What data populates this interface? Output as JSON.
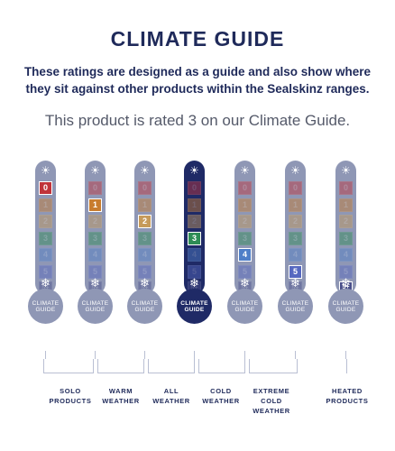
{
  "title": "CLIMATE GUIDE",
  "subtitle": "These ratings are designed as a guide and also show where they sit against other products within the Sealskinz ranges.",
  "rating_note": "This product is rated 3 on our Climate Guide.",
  "scale_levels": [
    "0",
    "1",
    "2",
    "3",
    "4",
    "5",
    "5+"
  ],
  "level_colors": [
    "#c0333a",
    "#c87c2e",
    "#c69a5a",
    "#2e8c55",
    "#4f7fc8",
    "#5668c0",
    "#4a4f8a"
  ],
  "bulb_label": [
    "CLIMATE",
    "GUIDE"
  ],
  "top_icon": "sun-icon",
  "bottom_icon": "snowflake-icon",
  "colors": {
    "navy": "#1f2a66",
    "inactive": "#8f97b5",
    "bracket": "#b9bfd3"
  },
  "thermometers": [
    {
      "highlighted_level": 0,
      "active": false
    },
    {
      "highlighted_level": 1,
      "active": false
    },
    {
      "highlighted_level": 2,
      "active": false
    },
    {
      "highlighted_level": 3,
      "active": true
    },
    {
      "highlighted_level": 4,
      "active": false
    },
    {
      "highlighted_level": 5,
      "active": false
    },
    {
      "highlighted_level": 6,
      "active": false
    }
  ],
  "categories": [
    {
      "lines": [
        "SOLO",
        "PRODUCTS"
      ]
    },
    {
      "lines": [
        "WARM",
        "WEATHER"
      ]
    },
    {
      "lines": [
        "ALL",
        "WEATHER"
      ]
    },
    {
      "lines": [
        "COLD",
        "WEATHER"
      ]
    },
    {
      "lines": [
        "EXTREME",
        "COLD",
        "WEATHER"
      ]
    },
    {
      "lines": [
        "HEATED",
        "PRODUCTS"
      ]
    }
  ]
}
